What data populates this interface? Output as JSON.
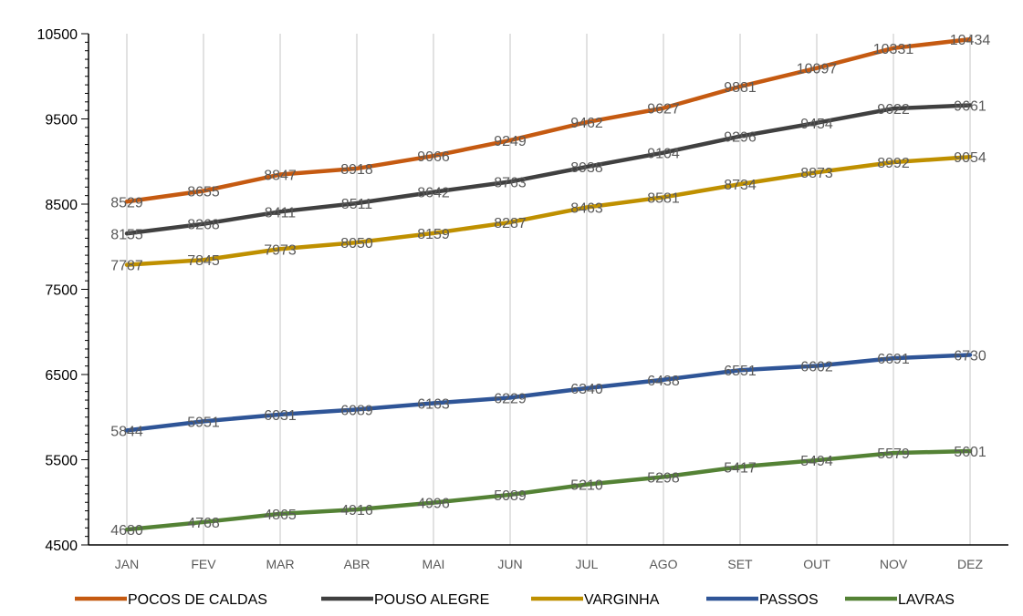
{
  "chart_data": {
    "type": "line",
    "categories": [
      "JAN",
      "FEV",
      "MAR",
      "ABR",
      "MAI",
      "JUN",
      "JUL",
      "AGO",
      "SET",
      "OUT",
      "NOV",
      "DEZ"
    ],
    "ylim": [
      4500,
      10500
    ],
    "yticks": [
      "4500",
      "5500",
      "6500",
      "7500",
      "8500",
      "9500",
      "10500"
    ],
    "grid": "vertical",
    "legend": "bottom",
    "series": [
      {
        "name": "POCOS DE CALDAS",
        "color": "#C55A11",
        "values": [
          8529,
          8655,
          8847,
          8918,
          9066,
          9249,
          9462,
          9627,
          9881,
          10097,
          10331,
          10434
        ]
      },
      {
        "name": "POUSO ALEGRE",
        "color": "#404040",
        "values": [
          8155,
          8268,
          8411,
          8511,
          8642,
          8763,
          8938,
          9104,
          9296,
          9454,
          9622,
          9661
        ]
      },
      {
        "name": "VARGINHA",
        "color": "#BF9000",
        "values": [
          7787,
          7845,
          7973,
          8050,
          8159,
          8287,
          8463,
          8581,
          8734,
          8873,
          8992,
          9054
        ]
      },
      {
        "name": "PASSOS",
        "color": "#2F5597",
        "values": [
          5844,
          5951,
          6031,
          6089,
          6163,
          6229,
          6340,
          6438,
          6551,
          6602,
          6691,
          6730
        ]
      },
      {
        "name": "LAVRAS",
        "color": "#548235",
        "values": [
          4680,
          4768,
          4865,
          4916,
          4996,
          5089,
          5210,
          5298,
          5417,
          5494,
          5579,
          5601
        ]
      }
    ]
  }
}
